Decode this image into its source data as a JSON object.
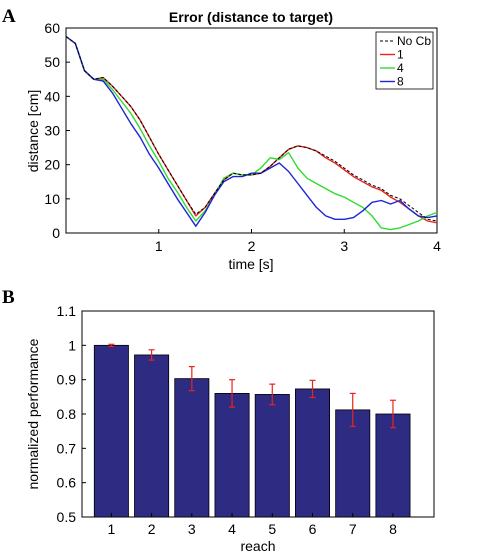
{
  "panel_a": {
    "letter": "A",
    "title": "Error (distance to target)",
    "xlabel": "time [s]",
    "ylabel": "distance [cm]"
  },
  "panel_b": {
    "letter": "B",
    "xlabel": "reach",
    "ylabel": "normalized performance"
  },
  "chart_data": [
    {
      "type": "line",
      "title": "Error (distance to target)",
      "xlabel": "time [s]",
      "ylabel": "distance [cm]",
      "xlim": [
        0,
        4
      ],
      "ylim": [
        0,
        60
      ],
      "xticks": [
        1,
        2,
        3,
        4
      ],
      "yticks": [
        0,
        10,
        20,
        30,
        40,
        50,
        60
      ],
      "grid": false,
      "legend_position": "top-right",
      "series": [
        {
          "name": "No Cb",
          "color": "#000000",
          "dashed": true,
          "x": [
            0,
            0.1,
            0.2,
            0.3,
            0.4,
            0.5,
            0.6,
            0.7,
            0.8,
            0.9,
            1.0,
            1.1,
            1.2,
            1.3,
            1.4,
            1.5,
            1.6,
            1.7,
            1.8,
            1.9,
            2.0,
            2.1,
            2.2,
            2.3,
            2.4,
            2.5,
            2.6,
            2.7,
            2.8,
            2.9,
            3.0,
            3.1,
            3.2,
            3.3,
            3.4,
            3.5,
            3.6,
            3.7,
            3.8,
            3.9,
            4.0
          ],
          "y": [
            57.5,
            55.5,
            47.5,
            45,
            45.5,
            43,
            40,
            37,
            33,
            28,
            23,
            18.5,
            14,
            9.5,
            5.5,
            7.5,
            11.5,
            15.5,
            17.5,
            17,
            17,
            17.5,
            19.5,
            22,
            24.5,
            25.5,
            25,
            24,
            22.5,
            21,
            19,
            17,
            15.5,
            14,
            13,
            11,
            10,
            8,
            6,
            4,
            3.5
          ]
        },
        {
          "name": "1",
          "color": "#e8241c",
          "x": [
            0,
            0.1,
            0.2,
            0.3,
            0.4,
            0.5,
            0.6,
            0.7,
            0.8,
            0.9,
            1.0,
            1.1,
            1.2,
            1.3,
            1.4,
            1.5,
            1.6,
            1.7,
            1.8,
            1.9,
            2.0,
            2.1,
            2.2,
            2.3,
            2.4,
            2.5,
            2.6,
            2.7,
            2.8,
            2.9,
            3.0,
            3.1,
            3.2,
            3.3,
            3.4,
            3.5,
            3.6,
            3.7,
            3.8,
            3.9,
            4.0
          ],
          "y": [
            57.5,
            55.5,
            47.5,
            45,
            45.5,
            43,
            40,
            37,
            33,
            28,
            23,
            18.5,
            14,
            9.5,
            5,
            7.5,
            11.5,
            15.5,
            17.5,
            17,
            17,
            17.5,
            19.5,
            22,
            24.5,
            25.5,
            25,
            24,
            22,
            20.5,
            18.5,
            16.5,
            15,
            13.5,
            12.5,
            10.5,
            9,
            7,
            5,
            3.5,
            3
          ]
        },
        {
          "name": "4",
          "color": "#2fdc2f",
          "x": [
            0,
            0.1,
            0.2,
            0.3,
            0.4,
            0.5,
            0.6,
            0.7,
            0.8,
            0.9,
            1.0,
            1.1,
            1.2,
            1.3,
            1.4,
            1.5,
            1.6,
            1.7,
            1.8,
            1.9,
            2.0,
            2.1,
            2.2,
            2.3,
            2.4,
            2.5,
            2.6,
            2.7,
            2.8,
            2.9,
            3.0,
            3.1,
            3.2,
            3.3,
            3.4,
            3.5,
            3.6,
            3.7,
            3.8,
            3.9,
            4.0
          ],
          "y": [
            57.5,
            55.5,
            47.5,
            45,
            45,
            42,
            38.5,
            35,
            30.5,
            25.5,
            21,
            16,
            12,
            7.5,
            3.5,
            6.5,
            11,
            16,
            17.5,
            17,
            17,
            19,
            22,
            21.5,
            23.5,
            19,
            16,
            14.5,
            13,
            11.5,
            10.5,
            9,
            7.5,
            5,
            1.5,
            1,
            1.5,
            2.5,
            3.5,
            5,
            6
          ]
        },
        {
          "name": "8",
          "color": "#1c25d8",
          "x": [
            0,
            0.1,
            0.2,
            0.3,
            0.4,
            0.5,
            0.6,
            0.7,
            0.8,
            0.9,
            1.0,
            1.1,
            1.2,
            1.3,
            1.4,
            1.5,
            1.6,
            1.7,
            1.8,
            1.9,
            2.0,
            2.1,
            2.2,
            2.3,
            2.4,
            2.5,
            2.6,
            2.7,
            2.8,
            2.9,
            3.0,
            3.1,
            3.2,
            3.3,
            3.4,
            3.5,
            3.6,
            3.7,
            3.8,
            3.9,
            4.0
          ],
          "y": [
            57.5,
            55.5,
            47.5,
            45,
            44.5,
            41,
            36.5,
            32,
            28,
            23,
            19,
            14.5,
            10,
            6,
            2,
            6,
            11,
            15,
            16.5,
            16.5,
            17.5,
            17.5,
            19,
            20.5,
            18,
            14.5,
            11,
            7.5,
            5,
            4,
            4,
            4.5,
            6.5,
            9,
            9.5,
            8.5,
            9.5,
            7,
            5,
            4.5,
            5
          ]
        }
      ]
    },
    {
      "type": "bar",
      "xlabel": "reach",
      "ylabel": "normalized performance",
      "categories": [
        "1",
        "2",
        "3",
        "4",
        "5",
        "6",
        "7",
        "8"
      ],
      "values": [
        1.0,
        0.972,
        0.903,
        0.86,
        0.857,
        0.873,
        0.812,
        0.8
      ],
      "errors": [
        0.003,
        0.015,
        0.035,
        0.04,
        0.03,
        0.025,
        0.048,
        0.04
      ],
      "ylim": [
        0.5,
        1.1
      ],
      "yticks": [
        0.5,
        0.6,
        0.7,
        0.8,
        0.9,
        1,
        1.1
      ],
      "bar_color": "#2d2b82",
      "error_color": "#e8241c",
      "grid": false
    }
  ]
}
